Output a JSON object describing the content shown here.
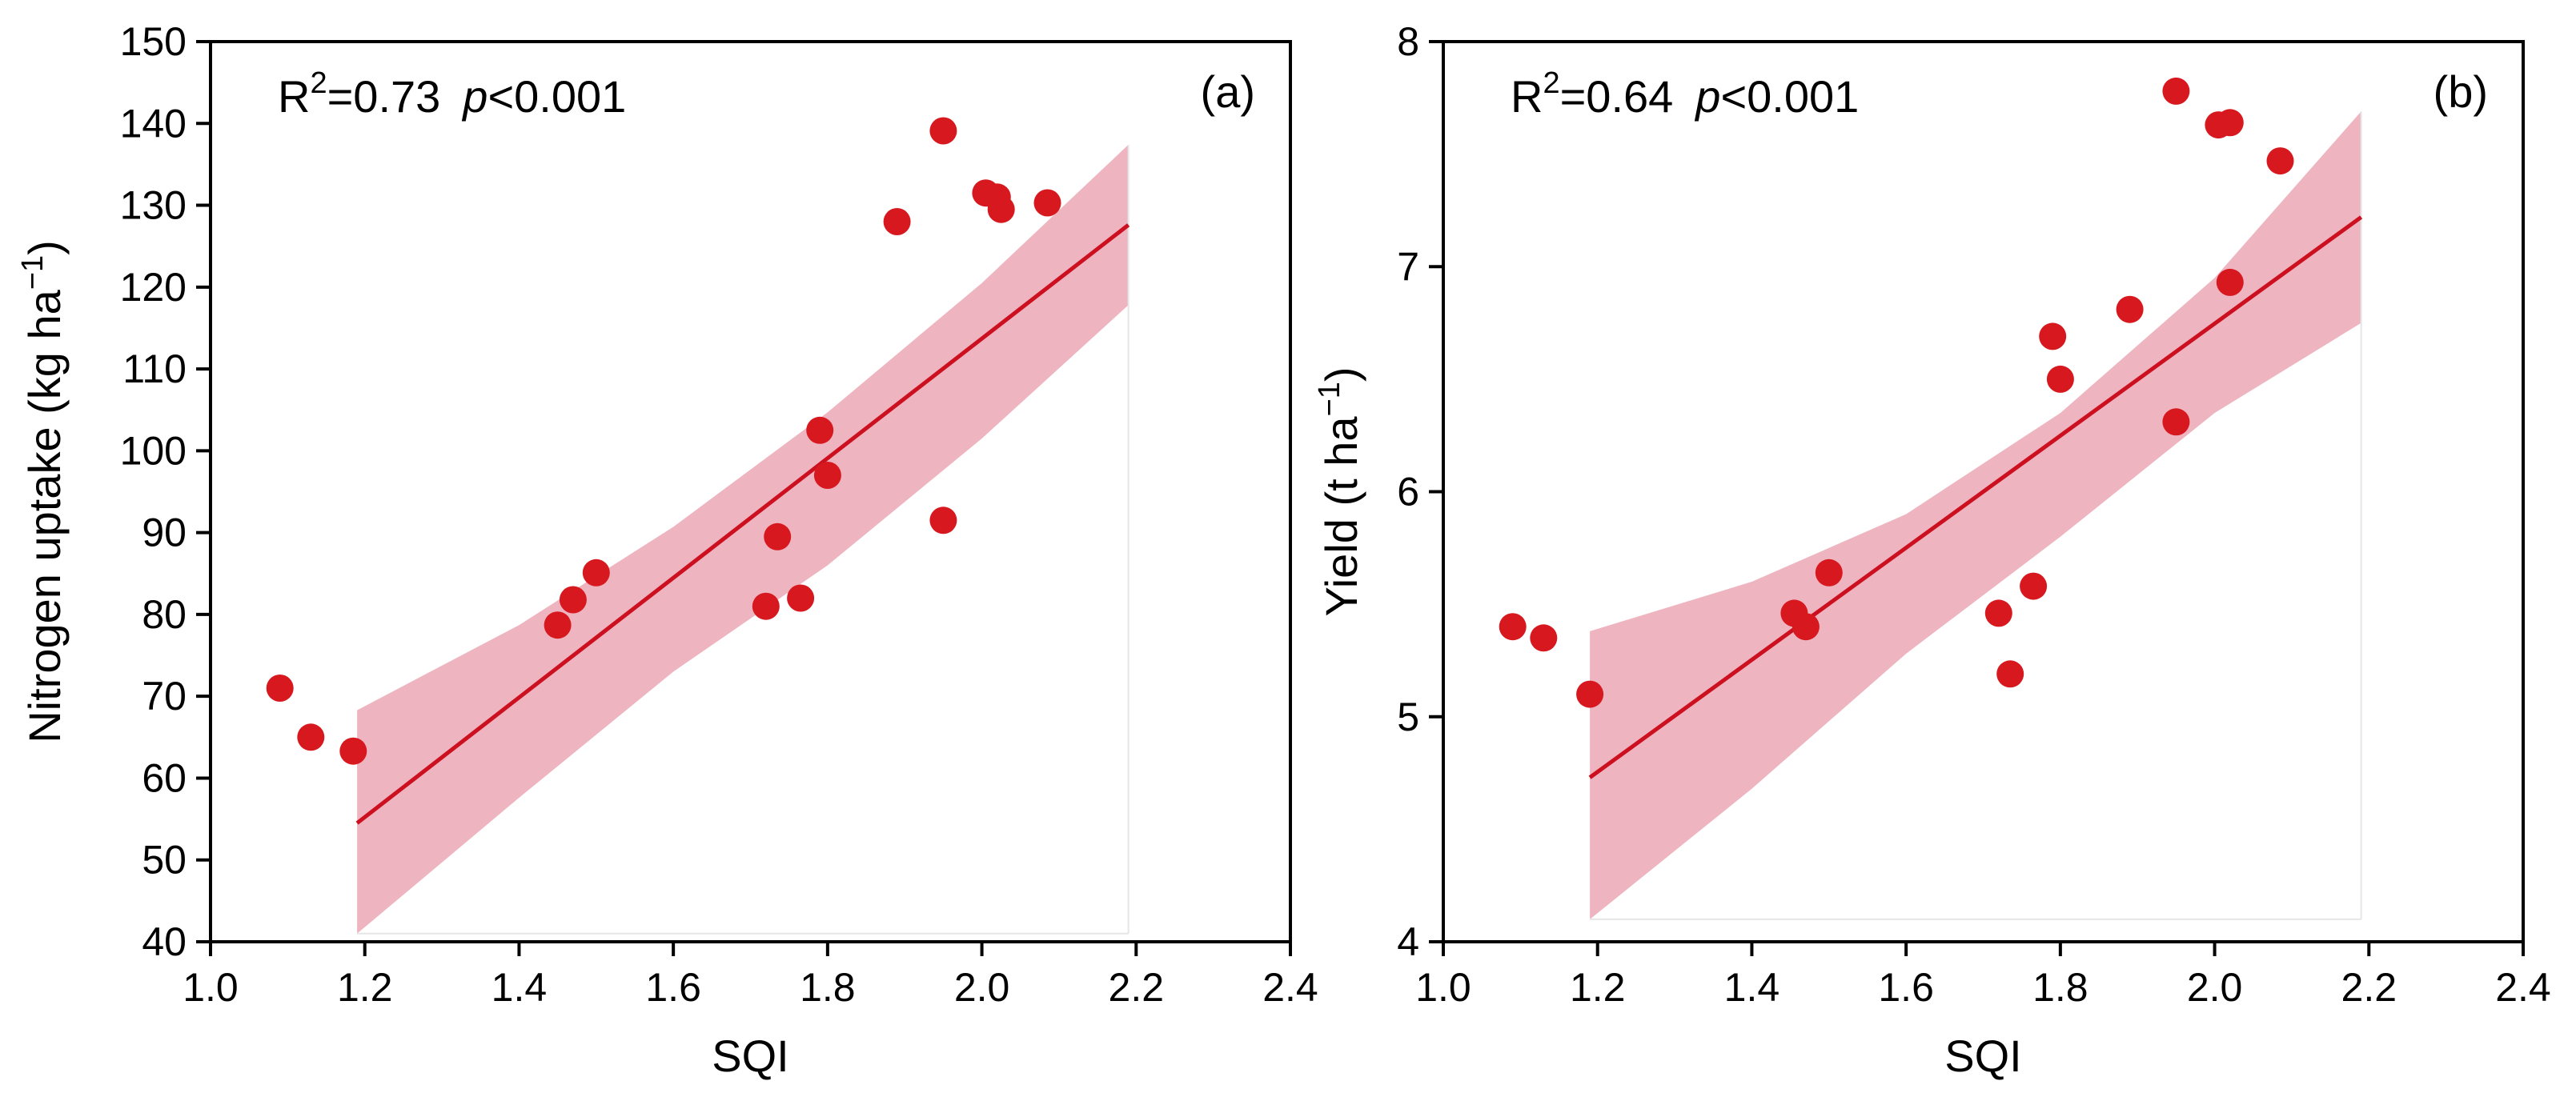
{
  "colors": {
    "point": "#d7191f",
    "fit_line": "#cc1020",
    "band": "#e58e9f",
    "axis": "#000000"
  },
  "chart_data": [
    {
      "type": "scatter",
      "panel_label": "(a)",
      "xlabel": "SQI",
      "ylabel": "Nitrogen uptake (kg ha",
      "ylabel_sup": "−1",
      "ylabel_close": ")",
      "stat_r": "R",
      "stat_r_sup": "2",
      "stat_r_value": "=0.73",
      "stat_p": "p",
      "stat_p_value": "<0.001",
      "xlim": [
        1.0,
        2.4
      ],
      "ylim": [
        40,
        150
      ],
      "xticks": [
        "1.0",
        "1.2",
        "1.4",
        "1.6",
        "1.8",
        "2.0",
        "2.2",
        "2.4"
      ],
      "yticks": [
        "40",
        "50",
        "60",
        "70",
        "80",
        "90",
        "100",
        "110",
        "120",
        "130",
        "140",
        "150"
      ],
      "points": [
        {
          "x": 1.09,
          "y": 71.0
        },
        {
          "x": 1.13,
          "y": 65.0
        },
        {
          "x": 1.185,
          "y": 63.3
        },
        {
          "x": 1.45,
          "y": 78.7
        },
        {
          "x": 1.47,
          "y": 81.8
        },
        {
          "x": 1.5,
          "y": 85.1
        },
        {
          "x": 1.72,
          "y": 81.0
        },
        {
          "x": 1.735,
          "y": 89.5
        },
        {
          "x": 1.765,
          "y": 82.0
        },
        {
          "x": 1.79,
          "y": 102.5
        },
        {
          "x": 1.8,
          "y": 97.0
        },
        {
          "x": 1.89,
          "y": 128.0
        },
        {
          "x": 1.95,
          "y": 139.1
        },
        {
          "x": 1.95,
          "y": 91.5
        },
        {
          "x": 2.005,
          "y": 131.5
        },
        {
          "x": 2.02,
          "y": 131.0
        },
        {
          "x": 2.025,
          "y": 129.5
        },
        {
          "x": 2.085,
          "y": 130.3
        }
      ],
      "fit": {
        "x": [
          1.19,
          2.19
        ],
        "y": [
          54.5,
          127.6
        ]
      },
      "band": {
        "x": [
          1.19,
          1.4,
          1.6,
          1.8,
          2.0,
          2.19
        ],
        "upper": [
          68.3,
          78.7,
          90.7,
          104.7,
          120.5,
          137.4
        ],
        "lower": [
          41.0,
          57.6,
          73.0,
          86.0,
          101.5,
          117.8
        ]
      }
    },
    {
      "type": "scatter",
      "panel_label": "(b)",
      "xlabel": "SQI",
      "ylabel": "Yield (t ha",
      "ylabel_sup": "−1",
      "ylabel_close": ")",
      "stat_r": "R",
      "stat_r_sup": "2",
      "stat_r_value": "=0.64",
      "stat_p": "p",
      "stat_p_value": "<0.001",
      "xlim": [
        1.0,
        2.4
      ],
      "ylim": [
        4,
        8
      ],
      "xticks": [
        "1.0",
        "1.2",
        "1.4",
        "1.6",
        "1.8",
        "2.0",
        "2.2",
        "2.4"
      ],
      "yticks": [
        "4",
        "5",
        "6",
        "7",
        "8"
      ],
      "points": [
        {
          "x": 1.09,
          "y": 5.4
        },
        {
          "x": 1.13,
          "y": 5.35
        },
        {
          "x": 1.19,
          "y": 5.1
        },
        {
          "x": 1.455,
          "y": 5.46
        },
        {
          "x": 1.47,
          "y": 5.4
        },
        {
          "x": 1.5,
          "y": 5.64
        },
        {
          "x": 1.72,
          "y": 5.46
        },
        {
          "x": 1.735,
          "y": 5.19
        },
        {
          "x": 1.765,
          "y": 5.58
        },
        {
          "x": 1.79,
          "y": 6.69
        },
        {
          "x": 1.8,
          "y": 6.5
        },
        {
          "x": 1.89,
          "y": 6.81
        },
        {
          "x": 1.95,
          "y": 7.78
        },
        {
          "x": 1.95,
          "y": 6.31
        },
        {
          "x": 2.005,
          "y": 7.63
        },
        {
          "x": 2.02,
          "y": 7.64
        },
        {
          "x": 2.02,
          "y": 6.93
        },
        {
          "x": 2.085,
          "y": 7.47
        }
      ],
      "fit": {
        "x": [
          1.19,
          2.19
        ],
        "y": [
          4.73,
          7.22
        ]
      },
      "band": {
        "x": [
          1.19,
          1.4,
          1.6,
          1.8,
          2.0,
          2.19
        ],
        "upper": [
          5.38,
          5.6,
          5.9,
          6.35,
          6.95,
          7.69
        ],
        "lower": [
          4.1,
          4.68,
          5.28,
          5.8,
          6.35,
          6.75
        ]
      }
    }
  ]
}
